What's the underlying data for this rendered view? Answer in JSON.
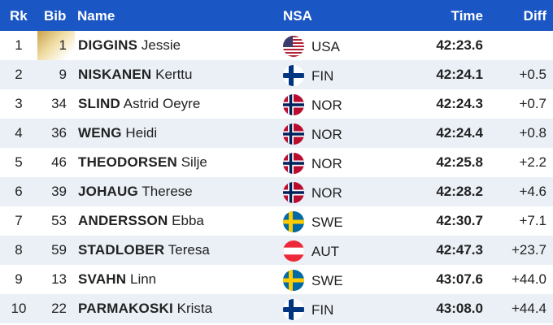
{
  "header": {
    "rank": "Rk",
    "bib": "Bib",
    "name": "Name",
    "nsa": "NSA",
    "time": "Time",
    "diff": "Diff"
  },
  "colors": {
    "header_bg": "#1a56c4",
    "alt_row_bg": "#eaf0f6",
    "gold": "#c9a24a"
  },
  "results": [
    {
      "rank": "1",
      "bib": "1",
      "last": "DIGGINS",
      "first": "Jessie",
      "nsa": "USA",
      "flag": "usa-flag-icon",
      "time": "42:23.6",
      "diff": ""
    },
    {
      "rank": "2",
      "bib": "9",
      "last": "NISKANEN",
      "first": "Kerttu",
      "nsa": "FIN",
      "flag": "finland-flag-icon",
      "time": "42:24.1",
      "diff": "+0.5"
    },
    {
      "rank": "3",
      "bib": "34",
      "last": "SLIND",
      "first": "Astrid Oeyre",
      "nsa": "NOR",
      "flag": "norway-flag-icon",
      "time": "42:24.3",
      "diff": "+0.7"
    },
    {
      "rank": "4",
      "bib": "36",
      "last": "WENG",
      "first": "Heidi",
      "nsa": "NOR",
      "flag": "norway-flag-icon",
      "time": "42:24.4",
      "diff": "+0.8"
    },
    {
      "rank": "5",
      "bib": "46",
      "last": "THEODORSEN",
      "first": "Silje",
      "nsa": "NOR",
      "flag": "norway-flag-icon",
      "time": "42:25.8",
      "diff": "+2.2"
    },
    {
      "rank": "6",
      "bib": "39",
      "last": "JOHAUG",
      "first": "Therese",
      "nsa": "NOR",
      "flag": "norway-flag-icon",
      "time": "42:28.2",
      "diff": "+4.6"
    },
    {
      "rank": "7",
      "bib": "53",
      "last": "ANDERSSON",
      "first": "Ebba",
      "nsa": "SWE",
      "flag": "sweden-flag-icon",
      "time": "42:30.7",
      "diff": "+7.1"
    },
    {
      "rank": "8",
      "bib": "59",
      "last": "STADLOBER",
      "first": "Teresa",
      "nsa": "AUT",
      "flag": "austria-flag-icon",
      "time": "42:47.3",
      "diff": "+23.7"
    },
    {
      "rank": "9",
      "bib": "13",
      "last": "SVAHN",
      "first": "Linn",
      "nsa": "SWE",
      "flag": "sweden-flag-icon",
      "time": "43:07.6",
      "diff": "+44.0"
    },
    {
      "rank": "10",
      "bib": "22",
      "last": "PARMAKOSKI",
      "first": "Krista",
      "nsa": "FIN",
      "flag": "finland-flag-icon",
      "time": "43:08.0",
      "diff": "+44.4"
    }
  ]
}
